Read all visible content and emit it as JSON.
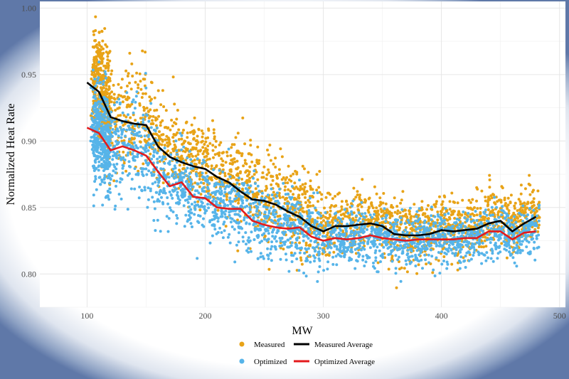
{
  "chart_data": {
    "type": "scatter",
    "title": "",
    "xlabel": "MW",
    "ylabel": "Normalized Heat Rate",
    "xlim": [
      60,
      505
    ],
    "ylim": [
      0.775,
      1.005
    ],
    "x_ticks": [
      100,
      200,
      300,
      400,
      500
    ],
    "y_ticks": [
      0.8,
      0.85,
      0.9,
      0.95,
      1.0
    ],
    "y_tick_labels": [
      "0.80",
      "0.85",
      "0.90",
      "0.95",
      "1.00"
    ],
    "grid": true,
    "legend_position": "bottom",
    "colors": {
      "measured": "#e8a317",
      "optimized": "#56b4e9",
      "measured_avg": "#000000",
      "optimized_avg": "#e31a1c"
    },
    "series": [
      {
        "name": "Measured",
        "kind": "points"
      },
      {
        "name": "Optimized",
        "kind": "points"
      },
      {
        "name": "Measured Average",
        "kind": "line",
        "x": [
          100,
          110,
          120,
          130,
          140,
          150,
          160,
          170,
          180,
          190,
          200,
          210,
          220,
          230,
          240,
          250,
          260,
          270,
          280,
          290,
          300,
          310,
          320,
          330,
          340,
          350,
          360,
          370,
          380,
          390,
          400,
          410,
          420,
          430,
          440,
          450,
          460,
          470,
          480
        ],
        "y": [
          0.944,
          0.937,
          0.918,
          0.915,
          0.913,
          0.912,
          0.896,
          0.888,
          0.884,
          0.881,
          0.879,
          0.873,
          0.869,
          0.862,
          0.856,
          0.855,
          0.852,
          0.847,
          0.843,
          0.836,
          0.832,
          0.836,
          0.836,
          0.837,
          0.838,
          0.836,
          0.83,
          0.829,
          0.829,
          0.83,
          0.833,
          0.832,
          0.833,
          0.834,
          0.838,
          0.84,
          0.832,
          0.838,
          0.843
        ]
      },
      {
        "name": "Optimized Average",
        "kind": "line",
        "x": [
          100,
          110,
          120,
          130,
          140,
          150,
          160,
          170,
          180,
          190,
          200,
          210,
          220,
          230,
          240,
          250,
          260,
          270,
          280,
          290,
          300,
          310,
          320,
          330,
          340,
          350,
          360,
          370,
          380,
          390,
          400,
          410,
          420,
          430,
          440,
          450,
          460,
          470,
          480
        ],
        "y": [
          0.91,
          0.906,
          0.893,
          0.896,
          0.893,
          0.889,
          0.877,
          0.866,
          0.869,
          0.858,
          0.857,
          0.85,
          0.849,
          0.849,
          0.84,
          0.837,
          0.835,
          0.834,
          0.835,
          0.828,
          0.825,
          0.827,
          0.826,
          0.827,
          0.829,
          0.827,
          0.826,
          0.825,
          0.826,
          0.826,
          0.826,
          0.826,
          0.827,
          0.827,
          0.832,
          0.832,
          0.826,
          0.831,
          0.832
        ]
      }
    ]
  }
}
